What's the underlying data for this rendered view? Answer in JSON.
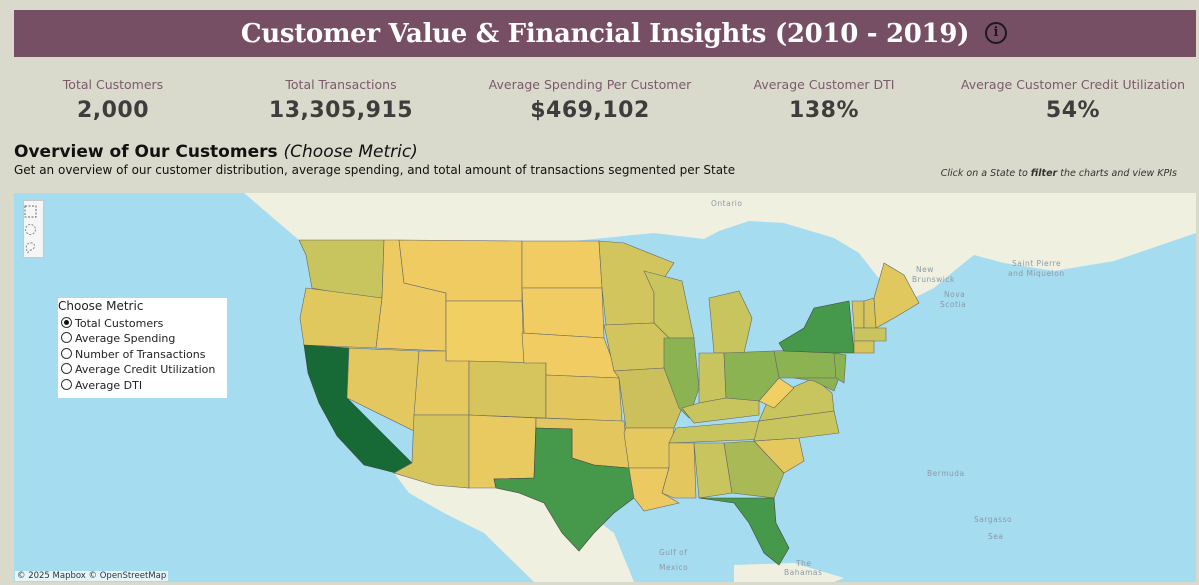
{
  "header": {
    "title": "Customer Value & Financial Insights (2010 - 2019)",
    "info_label": "i"
  },
  "kpis": [
    {
      "label": "Total Customers",
      "value": "2,000"
    },
    {
      "label": "Total Transactions",
      "value": "13,305,915"
    },
    {
      "label": "Average Spending Per Customer",
      "value": "$469,102"
    },
    {
      "label": "Average Customer DTI",
      "value": "138%"
    },
    {
      "label": "Average Customer Credit Utilization",
      "value": "54%"
    }
  ],
  "section": {
    "title": "Overview of Our Customers",
    "title_suffix": "(Choose Metric)",
    "subtitle": "Get an overview of our customer distribution, average spending, and total amount of transactions segmented per State",
    "hint_prefix": "Click on a State to ",
    "hint_bold": "filter",
    "hint_suffix": " the charts and view KPIs"
  },
  "metric_selector": {
    "heading": "Choose Metric",
    "options": [
      "Total Customers",
      "Average Spending",
      "Number of Transactions",
      "Average Credit Utilization",
      "Average DTI"
    ],
    "selected": "Total Customers"
  },
  "map": {
    "tools": [
      "rect-select-icon",
      "radial-select-icon",
      "lasso-select-icon"
    ],
    "labels": {
      "ontario": "Ontario",
      "new_brunswick_1": "New",
      "new_brunswick_2": "Brunswick",
      "nova_scotia_1": "Nova",
      "nova_scotia_2": "Scotia",
      "saint_pierre_1": "Saint Pierre",
      "saint_pierre_2": "and Miquelon",
      "bermuda": "Bermuda",
      "sargasso_1": "Sargasso",
      "sargasso_2": "Sea",
      "gulf_1": "Gulf of",
      "gulf_2": "Mexico",
      "bahamas_1": "The",
      "bahamas_2": "Bahamas"
    },
    "attribution": "© 2025 Mapbox © OpenStreetMap",
    "colors": {
      "water": "#a6dcf0",
      "land": "#f0f0e0",
      "ramp_low": "#f2cf63",
      "ramp_mid": "#c7c25c",
      "ramp_green": "#8cb352",
      "ramp_high": "#46984a",
      "ramp_max": "#176a36"
    }
  }
}
